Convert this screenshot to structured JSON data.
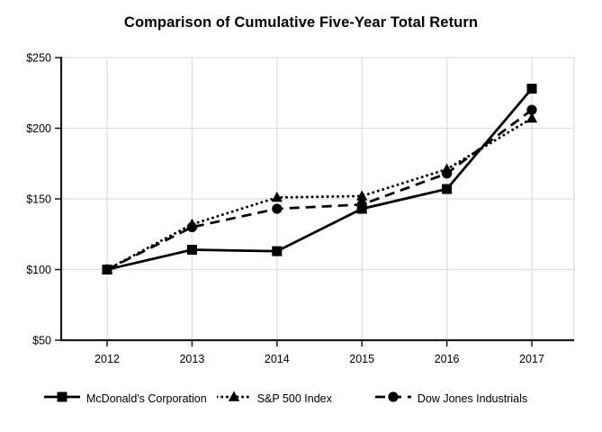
{
  "page": {
    "background_color": "#ffffff"
  },
  "chart_data": {
    "type": "line",
    "title": "Comparison of Cumulative Five-Year Total Return",
    "categories": [
      "2012",
      "2013",
      "2014",
      "2015",
      "2016",
      "2017"
    ],
    "series": [
      {
        "name": "McDonald's Corporation",
        "values": [
          100,
          114,
          113,
          143,
          157,
          228
        ],
        "marker": "square",
        "line_style": "solid",
        "color": "#000000"
      },
      {
        "name": "S&P 500 Index",
        "values": [
          100,
          132,
          151,
          152,
          171,
          207
        ],
        "marker": "triangle",
        "line_style": "dotted",
        "color": "#000000"
      },
      {
        "name": "Dow Jones Industrials",
        "values": [
          100,
          130,
          143,
          146,
          168,
          213
        ],
        "marker": "circle",
        "line_style": "dashed",
        "color": "#000000"
      }
    ],
    "y_ticks": [
      {
        "label": "$250",
        "value": 250
      },
      {
        "label": "$200",
        "value": 200
      },
      {
        "label": "$150",
        "value": 150
      },
      {
        "label": "$100",
        "value": 100
      },
      {
        "label": "$50",
        "value": 50
      }
    ],
    "ylim": [
      50,
      250
    ],
    "xlabel": "",
    "ylabel": "",
    "grid": true,
    "legend_position": "bottom",
    "colors": {
      "line": "#000000",
      "grid": "#e0e0e0",
      "axis": "#1a1a1a",
      "text": "#000000",
      "background": "#ffffff"
    }
  }
}
